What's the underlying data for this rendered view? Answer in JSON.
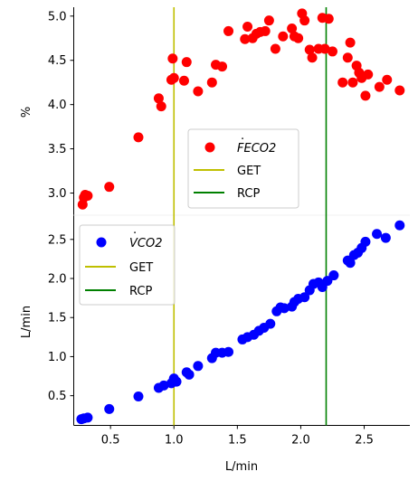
{
  "chart_data": [
    {
      "type": "scatter",
      "panel": "top",
      "xlabel": "",
      "ylabel": "%",
      "xlim": [
        0.21,
        2.86
      ],
      "ylim": [
        2.75,
        5.1
      ],
      "yticks": [
        3.0,
        3.5,
        4.0,
        4.5,
        5.0
      ],
      "ytick_labels": [
        "3.0",
        "3.5",
        "4.0",
        "4.5",
        "5.0"
      ],
      "legend": {
        "placement": "center",
        "entries": [
          {
            "label": "FECO2",
            "mark": "dot",
            "color": "#ff0000"
          },
          {
            "label": "GET",
            "mark": "line",
            "color": "#bfbf00"
          },
          {
            "label": "RCP",
            "mark": "line",
            "color": "#008000"
          }
        ]
      },
      "vlines": [
        {
          "name": "GET",
          "x": 1.0,
          "color": "#bfbf00"
        },
        {
          "name": "RCP",
          "x": 2.2,
          "color": "#008000"
        }
      ],
      "series": [
        {
          "name": "FECO2",
          "color": "#ff0000",
          "points": [
            [
              0.28,
              2.87
            ],
            [
              0.29,
              2.95
            ],
            [
              0.3,
              2.98
            ],
            [
              0.32,
              2.97
            ],
            [
              0.49,
              3.07
            ],
            [
              0.72,
              3.63
            ],
            [
              0.88,
              4.07
            ],
            [
              0.9,
              3.98
            ],
            [
              0.98,
              4.28
            ],
            [
              0.99,
              4.52
            ],
            [
              1.0,
              4.3
            ],
            [
              1.08,
              4.27
            ],
            [
              1.1,
              4.48
            ],
            [
              1.19,
              4.15
            ],
            [
              1.3,
              4.25
            ],
            [
              1.33,
              4.45
            ],
            [
              1.38,
              4.43
            ],
            [
              1.43,
              4.83
            ],
            [
              1.56,
              4.74
            ],
            [
              1.58,
              4.88
            ],
            [
              1.62,
              4.75
            ],
            [
              1.65,
              4.8
            ],
            [
              1.68,
              4.82
            ],
            [
              1.72,
              4.83
            ],
            [
              1.75,
              4.95
            ],
            [
              1.8,
              4.63
            ],
            [
              1.86,
              4.77
            ],
            [
              1.93,
              4.86
            ],
            [
              1.95,
              4.77
            ],
            [
              1.98,
              4.75
            ],
            [
              2.01,
              5.03
            ],
            [
              2.03,
              4.95
            ],
            [
              2.07,
              4.62
            ],
            [
              2.09,
              4.53
            ],
            [
              2.14,
              4.63
            ],
            [
              2.17,
              4.98
            ],
            [
              2.19,
              4.63
            ],
            [
              2.22,
              4.97
            ],
            [
              2.25,
              4.6
            ],
            [
              2.33,
              4.25
            ],
            [
              2.37,
              4.53
            ],
            [
              2.39,
              4.7
            ],
            [
              2.41,
              4.25
            ],
            [
              2.44,
              4.44
            ],
            [
              2.46,
              4.36
            ],
            [
              2.48,
              4.3
            ],
            [
              2.51,
              4.1
            ],
            [
              2.53,
              4.34
            ],
            [
              2.62,
              4.2
            ],
            [
              2.68,
              4.28
            ],
            [
              2.78,
              4.16
            ]
          ]
        }
      ]
    },
    {
      "type": "scatter",
      "panel": "bottom",
      "xlabel": "L/min",
      "ylabel": "L/min",
      "xlim": [
        0.21,
        2.86
      ],
      "ylim": [
        0.12,
        2.81
      ],
      "xticks": [
        0.5,
        1.0,
        1.5,
        2.0,
        2.5
      ],
      "xtick_labels": [
        "0.5",
        "1.0",
        "1.5",
        "2.0",
        "2.5"
      ],
      "yticks": [
        0.5,
        1.0,
        1.5,
        2.0,
        2.5
      ],
      "ytick_labels": [
        "0.5",
        "1.0",
        "1.5",
        "2.0",
        "2.5"
      ],
      "legend": {
        "placement": "upper-left",
        "entries": [
          {
            "label": "VCO2",
            "mark": "dot",
            "color": "#0000ff"
          },
          {
            "label": "GET",
            "mark": "line",
            "color": "#bfbf00"
          },
          {
            "label": "RCP",
            "mark": "line",
            "color": "#008000"
          }
        ]
      },
      "vlines": [
        {
          "name": "GET",
          "x": 1.0,
          "color": "#bfbf00"
        },
        {
          "name": "RCP",
          "x": 2.2,
          "color": "#008000"
        }
      ],
      "series": [
        {
          "name": "VCO2",
          "color": "#0000ff",
          "points": [
            [
              0.27,
              0.2
            ],
            [
              0.29,
              0.21
            ],
            [
              0.32,
              0.22
            ],
            [
              0.49,
              0.33
            ],
            [
              0.72,
              0.49
            ],
            [
              0.88,
              0.6
            ],
            [
              0.92,
              0.63
            ],
            [
              0.98,
              0.66
            ],
            [
              1.0,
              0.72
            ],
            [
              1.02,
              0.68
            ],
            [
              1.1,
              0.8
            ],
            [
              1.12,
              0.77
            ],
            [
              1.19,
              0.88
            ],
            [
              1.3,
              0.98
            ],
            [
              1.33,
              1.05
            ],
            [
              1.38,
              1.05
            ],
            [
              1.43,
              1.06
            ],
            [
              1.54,
              1.22
            ],
            [
              1.58,
              1.25
            ],
            [
              1.63,
              1.28
            ],
            [
              1.67,
              1.33
            ],
            [
              1.71,
              1.37
            ],
            [
              1.76,
              1.42
            ],
            [
              1.81,
              1.58
            ],
            [
              1.84,
              1.63
            ],
            [
              1.87,
              1.62
            ],
            [
              1.93,
              1.64
            ],
            [
              1.95,
              1.7
            ],
            [
              1.98,
              1.74
            ],
            [
              2.03,
              1.76
            ],
            [
              2.07,
              1.85
            ],
            [
              2.1,
              1.93
            ],
            [
              2.14,
              1.95
            ],
            [
              2.17,
              1.89
            ],
            [
              2.21,
              1.97
            ],
            [
              2.26,
              2.04
            ],
            [
              2.37,
              2.23
            ],
            [
              2.39,
              2.2
            ],
            [
              2.42,
              2.3
            ],
            [
              2.45,
              2.33
            ],
            [
              2.48,
              2.39
            ],
            [
              2.51,
              2.47
            ],
            [
              2.6,
              2.57
            ],
            [
              2.67,
              2.52
            ],
            [
              2.78,
              2.68
            ]
          ]
        }
      ]
    }
  ]
}
